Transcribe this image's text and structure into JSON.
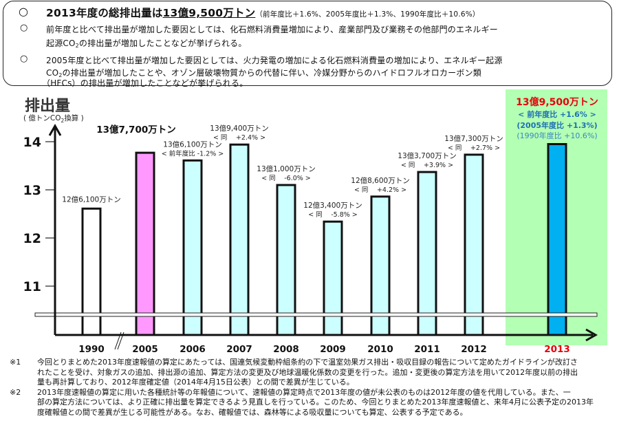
{
  "summary": {
    "headline_prefix": "2013年度の総排出量は",
    "headline_value": "13億9,500万トン",
    "headline_note": "（前年度比＋1.6%、2005年度比＋1.3%、1990年度比＋10.6%）",
    "bullet_glyph": "○",
    "point1_line1": "前年度と比べて排出量が増加した要因としては、化石燃料消費量増加により、産業部門及び業務その他部門のエネルギー",
    "point1_line2_pre": "起源CO",
    "point1_line2_sub": "2",
    "point1_line2_post": "の排出量が増加したことなどが挙げられる。",
    "point2_line1": "2005年度と比べて排出量が増加した要因としては、火力発電の増加による化石燃料消費量の増加により、エネルギー起源",
    "point2_line2_pre": "CO",
    "point2_line2_sub": "2",
    "point2_line2_post": "の排出量が増加したことや、オゾン層破壊物質からの代替に伴い、冷媒分野からのハイドロフルオロカーボン類",
    "point2_line3": "（HFCs）の排出量が増加したことなどが挙げられる。"
  },
  "chart_data": {
    "type": "bar",
    "title": "排出量",
    "ylabel_pre": "( 億トンCO",
    "ylabel_sub": "2",
    "ylabel_post": "換算 )",
    "yticks": [
      11,
      12,
      13,
      14
    ],
    "ylim": [
      10.4,
      14.8
    ],
    "axis_break": true,
    "break_mark": "//",
    "categories": [
      "1990",
      "2005",
      "2006",
      "2007",
      "2008",
      "2009",
      "2010",
      "2011",
      "2012",
      "2013"
    ],
    "values": [
      12.61,
      13.77,
      13.61,
      13.94,
      13.1,
      12.34,
      12.86,
      13.37,
      13.73,
      13.95
    ],
    "colors": [
      "#ffffff",
      "#ff99ff",
      "#ccffff",
      "#ccffff",
      "#ccffff",
      "#ccffff",
      "#ccffff",
      "#ccffff",
      "#ccffff",
      "#00b0f0"
    ],
    "highlight_bg": "#b3ffb3",
    "highlight_year_color": "#e8000b",
    "labels": [
      {
        "value": "12億6,100万トン",
        "change": ""
      },
      {
        "value": "13億7,700万トン",
        "change": ""
      },
      {
        "value": "13億6,100万トン",
        "change": "< 前年度比 -1.2% >"
      },
      {
        "value": "13億9,400万トン",
        "change": "< 同　 +2.4% >"
      },
      {
        "value": "13億1,000万トン",
        "change": "< 同　 -6.0% >"
      },
      {
        "value": "12億3,400万トン",
        "change": "< 同　 -5.8% >"
      },
      {
        "value": "12億8,600万トン",
        "change": "< 同　 +4.2% >"
      },
      {
        "value": "13億3,700万トン",
        "change": "< 同　 +3.9% >"
      },
      {
        "value": "13億7,300万トン",
        "change": "< 同　 +2.7% >"
      },
      {
        "value": "13億9,500万トン",
        "change": "< 前年度比 +1.6% >"
      }
    ],
    "highlight_extra": {
      "line2": "(2005年度比 +1.3%)",
      "line3": "(1990年度比 +10.6%)",
      "value_color": "#e8000b",
      "note_color": "#1f6fb5",
      "note3_color": "#3b86c4"
    }
  },
  "footnotes": [
    {
      "mark": "※1",
      "text": "今回とりまとめた2013年度速報値の算定にあたっては、国連気候変動枠組条約の下で温室効果ガス排出・吸収目録の報告について定めたガイドラインが改訂さ\nれたことを受け、対象ガスの追加、排出源の追加、算定方法の変更及び地球温暖化係数の変更を行った。追加・変更後の算定方法を用いて2012年度以前の排出\n量も再計算しており、2012年度確定値（2014年4月15日公表）との間で差異が生じている。"
    },
    {
      "mark": "※2",
      "text": "2013年度速報値の算定に用いた各種統計等の年報値について、速報値の算定時点で2013年度の値が未公表のものは2012年度の値を代用している。また、一\n部の算定方法については、より正確に排出量を算定できるよう見直しを行っている。このため、今回とりまとめた2013年度速報値と、来年4月に公表予定の2013年\n度確報値との間で差異が生じる可能性がある。なお、確報値では、森林等による吸収量についても算定、公表する予定である。"
    }
  ]
}
